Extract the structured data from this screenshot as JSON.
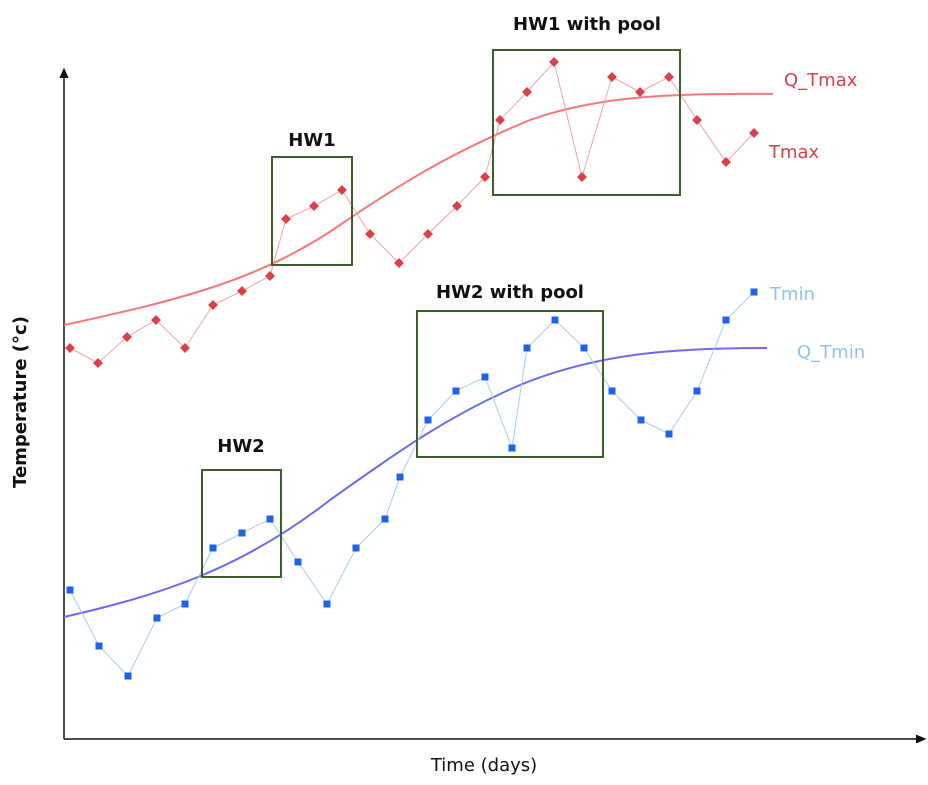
{
  "axes": {
    "xlabel": "Time (days)",
    "ylabel": "Temperature (°c)"
  },
  "colors": {
    "tmax": "#d9404a",
    "tmax_line": "#f4a3a6",
    "q_tmax": "#f6787c",
    "tmax_label": "#d9404a",
    "tmin": "#1f62e8",
    "tmin_line": "#a9cdf0",
    "q_tmin": "#6b6cf0",
    "tmin_label": "#8cc4f0",
    "box": "#3f5f2a",
    "axis": "#111111"
  },
  "series_labels": {
    "q_tmax": "Q_Tmax",
    "tmax": "Tmax",
    "tmin": "Tmin",
    "q_tmin": "Q_Tmin"
  },
  "boxes": {
    "hw1": "HW1",
    "hw1_pool": "HW1 with pool",
    "hw2": "HW2",
    "hw2_pool": "HW2 with pool"
  }
}
